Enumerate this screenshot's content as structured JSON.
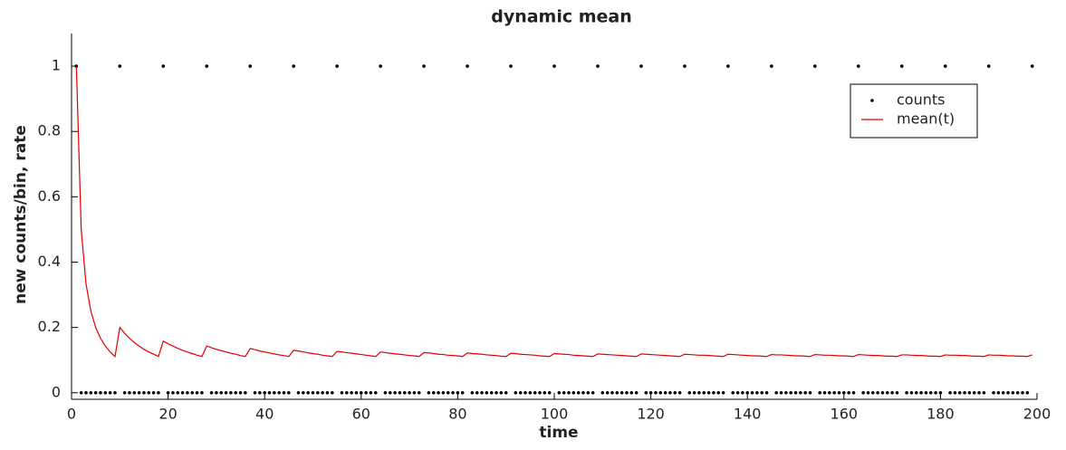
{
  "chart_data": {
    "type": "line",
    "title": "dynamic mean",
    "x_label": "time",
    "y_label": "new counts/bin, rate",
    "xlim": [
      0,
      200
    ],
    "xticks": [
      0,
      20,
      40,
      60,
      80,
      100,
      120,
      140,
      160,
      180,
      200
    ],
    "ylim": [
      -0.02,
      1.1
    ],
    "yticks": [
      0,
      0.2,
      0.4,
      0.6,
      0.8,
      1
    ],
    "legend": "upper right",
    "x": [
      1,
      2,
      3,
      4,
      5,
      6,
      7,
      8,
      9,
      10,
      11,
      12,
      13,
      14,
      15,
      16,
      17,
      18,
      19,
      20,
      21,
      22,
      23,
      24,
      25,
      26,
      27,
      28,
      29,
      30,
      31,
      32,
      33,
      34,
      35,
      36,
      37,
      38,
      39,
      40,
      41,
      42,
      43,
      44,
      45,
      46,
      47,
      48,
      49,
      50,
      51,
      52,
      53,
      54,
      55,
      56,
      57,
      58,
      59,
      60,
      61,
      62,
      63,
      64,
      65,
      66,
      67,
      68,
      69,
      70,
      71,
      72,
      73,
      74,
      75,
      76,
      77,
      78,
      79,
      80,
      81,
      82,
      83,
      84,
      85,
      86,
      87,
      88,
      89,
      90,
      91,
      92,
      93,
      94,
      95,
      96,
      97,
      98,
      99,
      100,
      101,
      102,
      103,
      104,
      105,
      106,
      107,
      108,
      109,
      110,
      111,
      112,
      113,
      114,
      115,
      116,
      117,
      118,
      119,
      120,
      121,
      122,
      123,
      124,
      125,
      126,
      127,
      128,
      129,
      130,
      131,
      132,
      133,
      134,
      135,
      136,
      137,
      138,
      139,
      140,
      141,
      142,
      143,
      144,
      145,
      146,
      147,
      148,
      149,
      150,
      151,
      152,
      153,
      154,
      155,
      156,
      157,
      158,
      159,
      160,
      161,
      162,
      163,
      164,
      165,
      166,
      167,
      168,
      169,
      170,
      171,
      172,
      173,
      174,
      175,
      176,
      177,
      178,
      179,
      180,
      181,
      182,
      183,
      184,
      185,
      186,
      187,
      188,
      189,
      190,
      191,
      192,
      193,
      194,
      195,
      196,
      197,
      198,
      199
    ],
    "series": [
      {
        "name": "counts",
        "color": "#000000",
        "mode": "markers",
        "values": [
          1,
          0,
          0,
          0,
          0,
          0,
          0,
          0,
          0,
          1,
          0,
          0,
          0,
          0,
          0,
          0,
          0,
          0,
          1,
          0,
          0,
          0,
          0,
          0,
          0,
          0,
          0,
          1,
          0,
          0,
          0,
          0,
          0,
          0,
          0,
          0,
          1,
          0,
          0,
          0,
          0,
          0,
          0,
          0,
          0,
          1,
          0,
          0,
          0,
          0,
          0,
          0,
          0,
          0,
          1,
          0,
          0,
          0,
          0,
          0,
          0,
          0,
          0,
          1,
          0,
          0,
          0,
          0,
          0,
          0,
          0,
          0,
          1,
          0,
          0,
          0,
          0,
          0,
          0,
          0,
          0,
          1,
          0,
          0,
          0,
          0,
          0,
          0,
          0,
          0,
          1,
          0,
          0,
          0,
          0,
          0,
          0,
          0,
          0,
          1,
          0,
          0,
          0,
          0,
          0,
          0,
          0,
          0,
          1,
          0,
          0,
          0,
          0,
          0,
          0,
          0,
          0,
          1,
          0,
          0,
          0,
          0,
          0,
          0,
          0,
          0,
          1,
          0,
          0,
          0,
          0,
          0,
          0,
          0,
          0,
          1,
          0,
          0,
          0,
          0,
          0,
          0,
          0,
          0,
          1,
          0,
          0,
          0,
          0,
          0,
          0,
          0,
          0,
          1,
          0,
          0,
          0,
          0,
          0,
          0,
          0,
          0,
          1,
          0,
          0,
          0,
          0,
          0,
          0,
          0,
          0,
          1,
          0,
          0,
          0,
          0,
          0,
          0,
          0,
          0,
          1,
          0,
          0,
          0,
          0,
          0,
          0,
          0,
          0,
          1,
          0,
          0,
          0,
          0,
          0,
          0,
          0,
          0,
          1
        ]
      },
      {
        "name": "mean(t)",
        "color": "#e00000",
        "mode": "lines",
        "values": [
          1,
          0.5,
          0.333,
          0.25,
          0.2,
          0.167,
          0.143,
          0.125,
          0.111,
          0.2,
          0.182,
          0.167,
          0.154,
          0.143,
          0.133,
          0.125,
          0.118,
          0.111,
          0.158,
          0.15,
          0.143,
          0.136,
          0.13,
          0.125,
          0.12,
          0.115,
          0.111,
          0.143,
          0.138,
          0.133,
          0.129,
          0.125,
          0.121,
          0.118,
          0.114,
          0.111,
          0.135,
          0.132,
          0.128,
          0.125,
          0.122,
          0.119,
          0.116,
          0.114,
          0.111,
          0.13,
          0.128,
          0.125,
          0.122,
          0.12,
          0.118,
          0.115,
          0.113,
          0.111,
          0.127,
          0.125,
          0.123,
          0.121,
          0.119,
          0.117,
          0.115,
          0.113,
          0.111,
          0.125,
          0.123,
          0.121,
          0.119,
          0.118,
          0.116,
          0.114,
          0.113,
          0.111,
          0.123,
          0.122,
          0.12,
          0.118,
          0.117,
          0.115,
          0.114,
          0.113,
          0.111,
          0.122,
          0.12,
          0.119,
          0.118,
          0.116,
          0.115,
          0.114,
          0.112,
          0.111,
          0.121,
          0.12,
          0.118,
          0.117,
          0.116,
          0.115,
          0.113,
          0.112,
          0.111,
          0.12,
          0.119,
          0.118,
          0.117,
          0.115,
          0.114,
          0.113,
          0.112,
          0.111,
          0.119,
          0.118,
          0.117,
          0.116,
          0.115,
          0.114,
          0.113,
          0.112,
          0.111,
          0.119,
          0.118,
          0.117,
          0.116,
          0.115,
          0.114,
          0.113,
          0.112,
          0.111,
          0.118,
          0.117,
          0.116,
          0.115,
          0.115,
          0.114,
          0.113,
          0.112,
          0.111,
          0.118,
          0.117,
          0.116,
          0.115,
          0.114,
          0.113,
          0.113,
          0.112,
          0.111,
          0.117,
          0.116,
          0.116,
          0.115,
          0.114,
          0.113,
          0.113,
          0.112,
          0.111,
          0.117,
          0.116,
          0.115,
          0.115,
          0.114,
          0.113,
          0.113,
          0.112,
          0.111,
          0.117,
          0.116,
          0.115,
          0.114,
          0.114,
          0.113,
          0.112,
          0.112,
          0.111,
          0.116,
          0.116,
          0.115,
          0.114,
          0.114,
          0.113,
          0.112,
          0.112,
          0.111,
          0.116,
          0.115,
          0.115,
          0.114,
          0.114,
          0.113,
          0.112,
          0.112,
          0.111,
          0.116,
          0.115,
          0.115,
          0.114,
          0.113,
          0.113,
          0.112,
          0.112,
          0.111,
          0.116
        ]
      }
    ]
  }
}
